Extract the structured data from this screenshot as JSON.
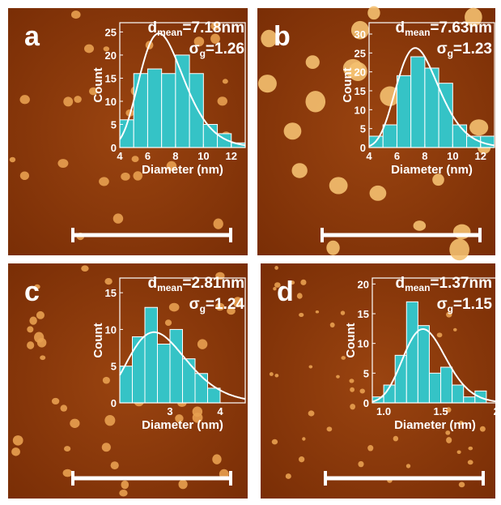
{
  "chart_data": [
    {
      "type": "histogram",
      "label": "a",
      "x_label": "Diameter (nm)",
      "y_label": "Count",
      "bins": [
        4,
        5,
        6,
        7,
        8,
        9,
        10,
        11,
        12,
        13
      ],
      "values": [
        6,
        16,
        17,
        16,
        20,
        16,
        5,
        3,
        1
      ],
      "color": "#35c3c6",
      "xlim": [
        4,
        13
      ],
      "xticks": [
        4,
        6,
        8,
        10,
        12
      ],
      "ylim": [
        0,
        27
      ],
      "yticks": [
        0,
        5,
        10,
        15,
        20,
        25
      ],
      "d_symbol": "d",
      "d_sub": "mean",
      "dmean": {
        "value": 7.18,
        "label": "=7.18nm"
      },
      "sigma_symbol": "σ",
      "sigma_sub": "g",
      "sigma": {
        "value": 1.26,
        "label": "=1.26"
      }
    },
    {
      "type": "histogram",
      "label": "b",
      "x_label": "Diameter (nm)",
      "y_label": "Count",
      "bins": [
        4,
        5,
        6,
        7,
        8,
        9,
        10,
        11,
        12,
        13
      ],
      "values": [
        3,
        6,
        19,
        24,
        21,
        17,
        6,
        3,
        3
      ],
      "color": "#35c3c6",
      "xlim": [
        4,
        13
      ],
      "xticks": [
        4,
        6,
        8,
        10,
        12
      ],
      "ylim": [
        0,
        33
      ],
      "yticks": [
        0,
        5,
        10,
        15,
        20,
        25,
        30
      ],
      "d_symbol": "d",
      "d_sub": "mean",
      "dmean": {
        "value": 7.63,
        "label": "=7.63nm"
      },
      "sigma_symbol": "σ",
      "sigma_sub": "g",
      "sigma": {
        "value": 1.23,
        "label": "=1.23"
      }
    },
    {
      "type": "histogram",
      "label": "c",
      "x_label": "Diameter (nm)",
      "y_label": "Count",
      "bins": [
        2.0,
        2.25,
        2.5,
        2.75,
        3.0,
        3.25,
        3.5,
        3.75,
        4.0
      ],
      "values": [
        5,
        9,
        13,
        8,
        10,
        6,
        4,
        2
      ],
      "color": "#35c3c6",
      "xlim": [
        2.0,
        4.5
      ],
      "xticks": [
        3,
        4
      ],
      "ylim": [
        0,
        17
      ],
      "yticks": [
        0,
        5,
        10,
        15
      ],
      "d_symbol": "d",
      "d_sub": "mean",
      "dmean": {
        "value": 2.81,
        "label": "=2.81nm"
      },
      "sigma_symbol": "σ",
      "sigma_sub": "g",
      "sigma": {
        "value": 1.24,
        "label": "=1.24"
      }
    },
    {
      "type": "histogram",
      "label": "d",
      "x_label": "Diameter (nm)",
      "y_label": "Count",
      "bins": [
        0.9,
        1.0,
        1.1,
        1.2,
        1.3,
        1.4,
        1.5,
        1.6,
        1.7,
        1.8,
        1.9
      ],
      "values": [
        1,
        3,
        8,
        17,
        13,
        5,
        6,
        3,
        1,
        2
      ],
      "color": "#35c3c6",
      "xlim": [
        0.9,
        2.0
      ],
      "xticks": [
        {
          "value": 1.0,
          "label": "1.0"
        },
        {
          "value": 1.5,
          "label": "1.5"
        },
        {
          "value": 2,
          "label": "2."
        }
      ],
      "ylim": [
        0,
        21
      ],
      "yticks": [
        0,
        5,
        10,
        15,
        20
      ],
      "d_symbol": "d",
      "d_sub": "mean",
      "dmean": {
        "value": 1.37,
        "label": "=1.37nm"
      },
      "sigma_symbol": "σ",
      "sigma_sub": "g",
      "sigma": {
        "value": 1.15,
        "label": "=1.15"
      }
    }
  ]
}
